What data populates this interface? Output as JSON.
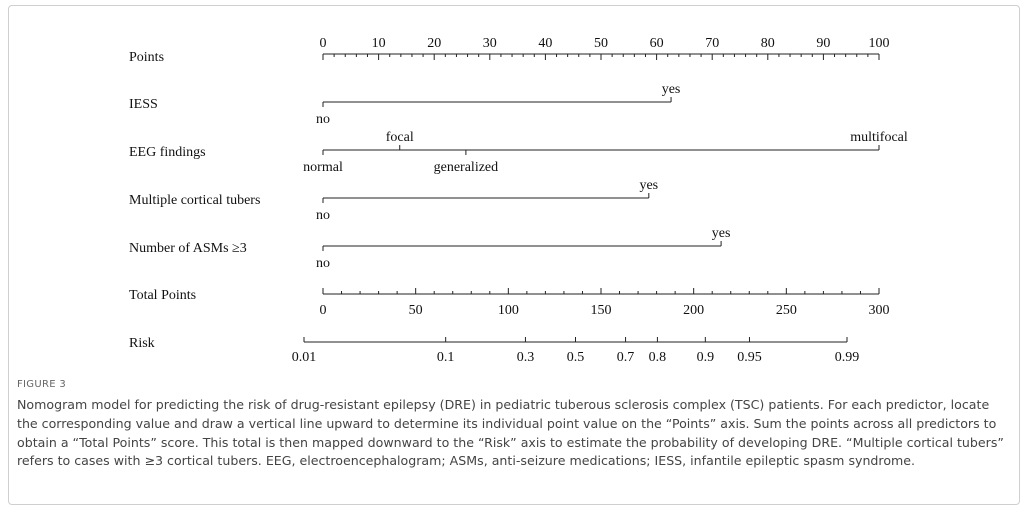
{
  "nomogram": {
    "points_axis": {
      "label": "Points",
      "lim": [
        0,
        100
      ],
      "ticks": [
        0,
        10,
        20,
        30,
        40,
        50,
        60,
        70,
        80,
        90,
        100
      ]
    },
    "predictors": [
      {
        "label": "IESS",
        "levels": [
          {
            "label": "no",
            "points": 0
          },
          {
            "label": "yes",
            "points": 62.6
          }
        ]
      },
      {
        "label": "EEG findings",
        "levels": [
          {
            "label": "normal",
            "points": 0
          },
          {
            "label": "focal",
            "points": 13.8
          },
          {
            "label": "generalized",
            "points": 25.7
          },
          {
            "label": "multifocal",
            "points": 100
          }
        ]
      },
      {
        "label": "Multiple cortical tubers",
        "levels": [
          {
            "label": "no",
            "points": 0
          },
          {
            "label": "yes",
            "points": 58.6
          }
        ]
      },
      {
        "label": "Number of ASMs ≥3",
        "levels": [
          {
            "label": "no",
            "points": 0
          },
          {
            "label": "yes",
            "points": 71.6
          }
        ]
      }
    ],
    "total_points": {
      "label": "Total Points",
      "lim": [
        0,
        300
      ],
      "ticks": [
        0,
        50,
        100,
        150,
        200,
        250,
        300
      ]
    },
    "risk": {
      "label": "Risk",
      "scale": "logit",
      "lim": [
        0.01,
        0.99
      ],
      "ticks": [
        0.01,
        0.1,
        0.3,
        0.5,
        0.7,
        0.8,
        0.9,
        0.95,
        0.99
      ]
    }
  },
  "caption": {
    "label": "FIGURE 3",
    "text": "Nomogram model for predicting the risk of drug-resistant epilepsy (DRE) in pediatric tuberous sclerosis complex (TSC) patients. For each predictor, locate the corresponding value and draw a vertical line upward to determine its individual point value on the “Points” axis. Sum the points across all predictors to obtain a “Total Points” score. This total is then mapped downward to the “Risk” axis to estimate the probability of developing DRE. “Multiple cortical tubers” refers to cases with ≥3 cortical tubers. EEG, electroencephalogram; ASMs, anti-seizure medications; IESS, infantile epileptic spasm syndrome."
  }
}
